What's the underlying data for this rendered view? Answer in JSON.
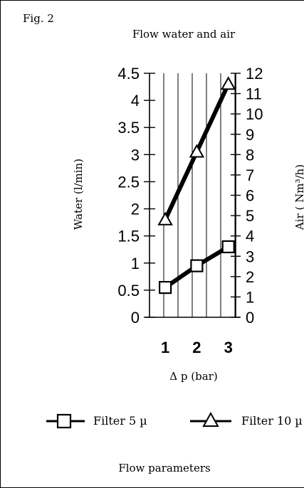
{
  "figure": {
    "label": "Fig. 2",
    "caption": "Flow parameters"
  },
  "chart_data": {
    "type": "line",
    "title": "Flow water and air",
    "xlabel": "Δ p (bar)",
    "ylabel": "Water (l/min)",
    "y2label": "Air ( Nm³/h)",
    "x_ticks": [
      "1",
      "2",
      "3"
    ],
    "y_ticks": [
      "4.5",
      "4",
      "3.5",
      "3",
      "2.5",
      "2",
      "1.5",
      "1",
      "0.5",
      "0"
    ],
    "y2_ticks": [
      "12",
      "11",
      "10",
      "9",
      "8",
      "7",
      "6",
      "5",
      "4",
      "3",
      "2",
      "1",
      "0"
    ],
    "xlim": [
      0.5,
      3.3
    ],
    "ylim": [
      0,
      4.5
    ],
    "y2lim": [
      0,
      12
    ],
    "grid": true,
    "legend_position": "bottom",
    "series": [
      {
        "name": "Filter 5 µ",
        "marker": "square",
        "x": [
          1,
          2,
          3
        ],
        "y": [
          0.55,
          0.95,
          1.3
        ]
      },
      {
        "name": "Filter 10 µ",
        "marker": "triangle",
        "x": [
          1,
          2,
          3
        ],
        "y": [
          1.8,
          3.05,
          4.3
        ]
      }
    ],
    "line_color": "#000000"
  }
}
